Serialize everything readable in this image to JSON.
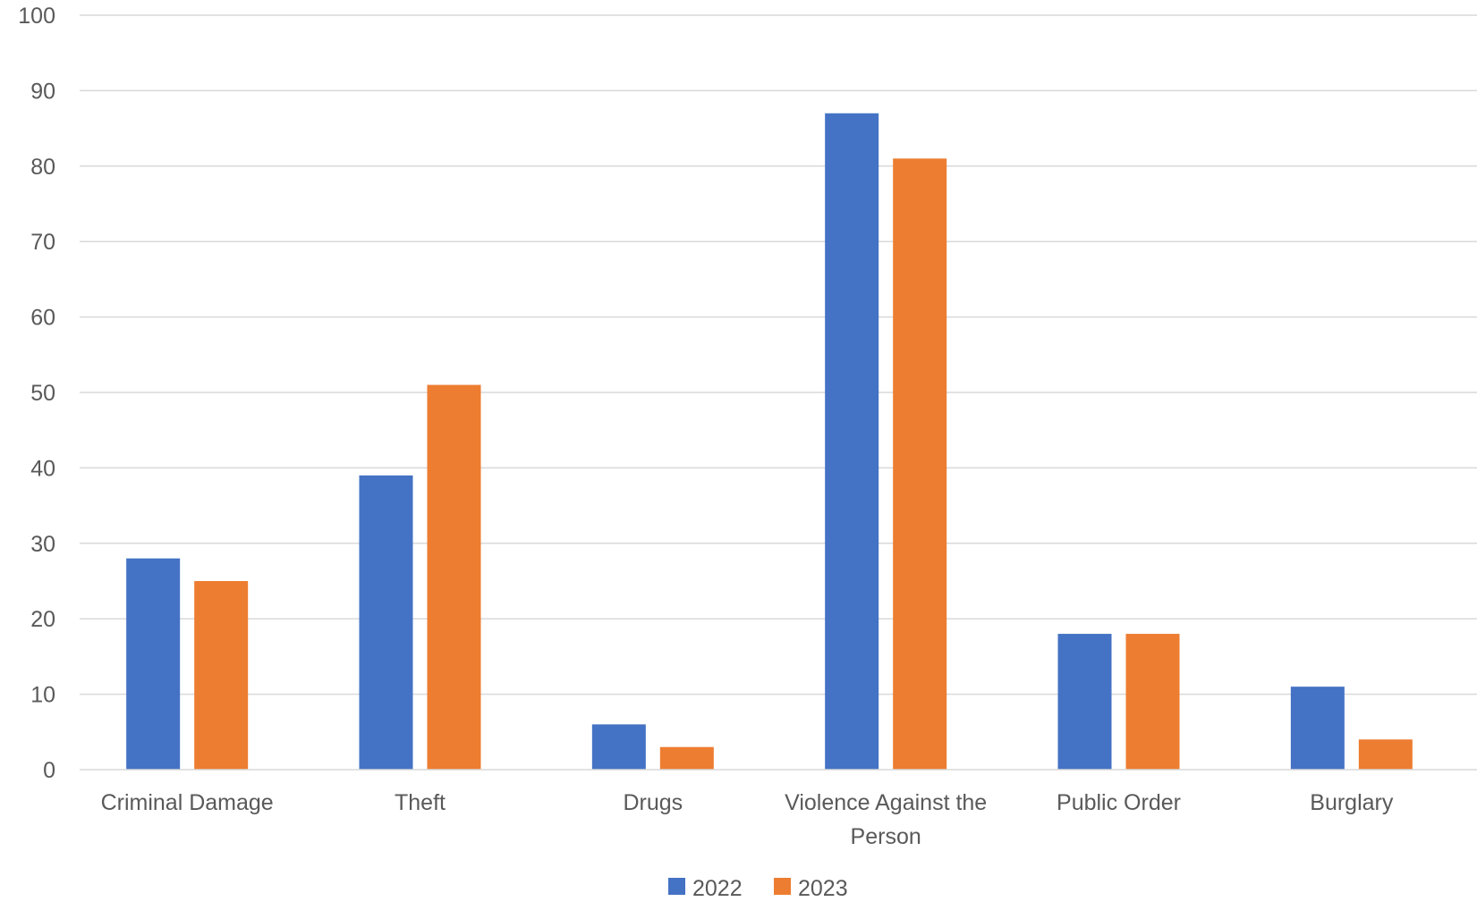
{
  "chart_data": {
    "type": "bar",
    "title": "",
    "xlabel": "",
    "ylabel": "",
    "categories": [
      "Criminal Damage",
      "Theft",
      "Drugs",
      "Violence Against the Person",
      "Public Order",
      "Burglary"
    ],
    "category_lines": [
      [
        "Criminal Damage"
      ],
      [
        "Theft"
      ],
      [
        "Drugs"
      ],
      [
        "Violence Against the",
        "Person"
      ],
      [
        "Public Order"
      ],
      [
        "Burglary"
      ]
    ],
    "series": [
      {
        "name": "2022",
        "color": "#4472c4",
        "values": [
          28,
          39,
          6,
          87,
          18,
          11
        ]
      },
      {
        "name": "2023",
        "color": "#ed7d31",
        "values": [
          25,
          51,
          3,
          81,
          18,
          4
        ]
      }
    ],
    "ylim": [
      0,
      100
    ],
    "yticks": [
      0,
      10,
      20,
      30,
      40,
      50,
      60,
      70,
      80,
      90,
      100
    ],
    "grid": true,
    "legend_position": "bottom"
  }
}
